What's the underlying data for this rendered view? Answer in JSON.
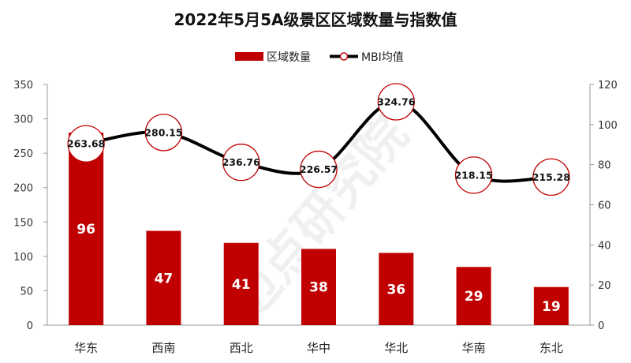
{
  "chart_data": {
    "type": "bar+line",
    "title": "2022年5月5A级景区区域数量与指数值",
    "categories": [
      "华东",
      "西南",
      "西北",
      "华中",
      "华北",
      "华南",
      "东北"
    ],
    "series": [
      {
        "name": "区域数量",
        "type": "bar",
        "axis": "right",
        "color": "#C00000",
        "values": [
          96,
          47,
          41,
          38,
          36,
          29,
          19
        ]
      },
      {
        "name": "MBI均值",
        "type": "line",
        "axis": "left",
        "color": "#000000",
        "marker_color": "#C00000",
        "values": [
          263.68,
          280.15,
          236.76,
          226.57,
          324.76,
          218.15,
          215.28
        ]
      }
    ],
    "left_axis": {
      "ylim": [
        0,
        350
      ],
      "ticks": [
        0,
        50,
        100,
        150,
        200,
        250,
        300,
        350
      ]
    },
    "right_axis": {
      "ylim": [
        0,
        120
      ],
      "ticks": [
        0,
        20,
        40,
        60,
        80,
        100,
        120
      ]
    },
    "grid": false,
    "legend_placement": "top",
    "watermark": "迈点研究院"
  }
}
